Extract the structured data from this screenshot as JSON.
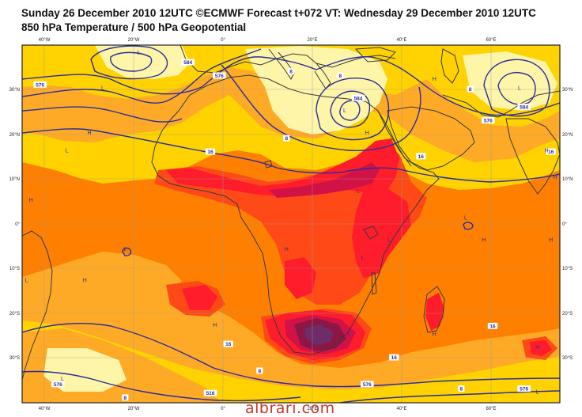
{
  "title_line1": "Sunday 26 December 2010 12UTC ©ECMWF Forecast t+072 VT: Wednesday 29 December 2010 12UTC",
  "title_line2": "850 hPa Temperature / 500 hPa Geopotential",
  "watermark": "albrari.com",
  "lon_labels": [
    "40°W",
    "20°W",
    "0°",
    "20°E",
    "40°E",
    "60°E"
  ],
  "lat_labels": [
    "30°N",
    "20°N",
    "10°N",
    "0°",
    "10°S",
    "20°S",
    "30°S"
  ],
  "pressure_labels": [
    {
      "text": "H",
      "lon": -43,
      "lat": 5
    },
    {
      "text": "H",
      "lon": -30,
      "lat": 20
    },
    {
      "text": "L",
      "lon": -35,
      "lat": 16
    },
    {
      "text": "H",
      "lon": 32,
      "lat": 20
    },
    {
      "text": "H",
      "lon": 47,
      "lat": 32
    },
    {
      "text": "L",
      "lon": 27,
      "lat": 25
    },
    {
      "text": "L",
      "lon": 66,
      "lat": 30
    },
    {
      "text": "H",
      "lon": 72,
      "lat": 16
    },
    {
      "text": "L",
      "lon": -19,
      "lat": 38
    },
    {
      "text": "L",
      "lon": 37,
      "lat": -4
    },
    {
      "text": "L",
      "lon": 31,
      "lat": -8
    },
    {
      "text": "H",
      "lon": 14,
      "lat": -6
    },
    {
      "text": "H",
      "lon": 58,
      "lat": -4
    },
    {
      "text": "H",
      "lon": -31,
      "lat": -13
    },
    {
      "text": "L",
      "lon": -44,
      "lat": -13
    },
    {
      "text": "H",
      "lon": -2,
      "lat": -23
    },
    {
      "text": "H",
      "lon": 47,
      "lat": -25
    },
    {
      "text": "H",
      "lon": 70,
      "lat": -28
    },
    {
      "text": "L",
      "lon": 70,
      "lat": -38
    },
    {
      "text": "L",
      "lon": -36,
      "lat": -35
    },
    {
      "text": "L",
      "lon": -22,
      "lat": -6
    },
    {
      "text": "L",
      "lon": 28,
      "lat": -25
    },
    {
      "text": "H",
      "lon": 74,
      "lat": 10
    },
    {
      "text": "H",
      "lon": 73,
      "lat": -4
    },
    {
      "text": "L",
      "lon": 54,
      "lat": 1
    },
    {
      "text": "L",
      "lon": 30,
      "lat": 7
    },
    {
      "text": "L",
      "lon": -27,
      "lat": 30
    }
  ],
  "contour_labels": [
    {
      "text": "8",
      "lon": 15,
      "lat": 34
    },
    {
      "text": "8",
      "lon": 26,
      "lat": 33
    },
    {
      "text": "8",
      "lon": 55,
      "lat": 30
    },
    {
      "text": "8",
      "lon": 14,
      "lat": 19
    },
    {
      "text": "16",
      "lon": -3,
      "lat": 16
    },
    {
      "text": "16",
      "lon": 44,
      "lat": 15
    },
    {
      "text": "16",
      "lon": 73,
      "lat": 16
    },
    {
      "text": "16",
      "lon": 1,
      "lat": -27
    },
    {
      "text": "16",
      "lon": 60,
      "lat": -23
    },
    {
      "text": "16",
      "lon": 38,
      "lat": -30
    },
    {
      "text": "8",
      "lon": -22,
      "lat": -39
    },
    {
      "text": "8",
      "lon": 53,
      "lat": -37
    },
    {
      "text": "8",
      "lon": 8,
      "lat": -33
    },
    {
      "text": "576",
      "lon": -41,
      "lat": 31
    },
    {
      "text": "576",
      "lon": -1,
      "lat": 33
    },
    {
      "text": "584",
      "lon": -8,
      "lat": 36
    },
    {
      "text": "584",
      "lon": 30,
      "lat": 28
    },
    {
      "text": "576",
      "lon": 59,
      "lat": 23
    },
    {
      "text": "584",
      "lon": 67,
      "lat": 26
    },
    {
      "text": "576",
      "lon": -37,
      "lat": -36
    },
    {
      "text": "576",
      "lon": 32,
      "lat": -36
    },
    {
      "text": "576",
      "lon": 67,
      "lat": -37
    },
    {
      "text": "516",
      "lon": -3,
      "lat": -38
    }
  ],
  "colors": {
    "pale_yellow": "#fff5a8",
    "yellow": "#ffd200",
    "light_orange": "#ffaa26",
    "orange": "#ff7f00",
    "red_orange": "#ff4a17",
    "red": "#ff1c2b",
    "crimson": "#d11246",
    "maroon": "#8c1646",
    "purple": "#6f2c6a",
    "coast": "#3a3a3a",
    "contour": "#2a2d9c"
  }
}
